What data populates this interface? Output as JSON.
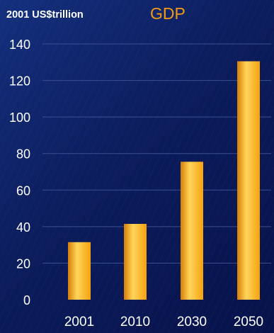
{
  "chart_data": {
    "type": "bar",
    "title": "GDP",
    "ylabel": "2001 US$trillion",
    "xlabel": "",
    "categories": [
      "2001",
      "2010",
      "2030",
      "2050"
    ],
    "values": [
      31.5,
      41.5,
      75.5,
      130.5
    ],
    "ylim": [
      0,
      140
    ],
    "yticks": [
      0,
      20,
      40,
      60,
      80,
      100,
      120,
      140
    ],
    "grid": true,
    "legend": "none",
    "colors": {
      "bar": "#f5a20f",
      "bar_light": "#ffd45a",
      "bar_dark": "#d77d08",
      "title": "#f39a16",
      "text": "#ffffff",
      "grid": "#3b4f92"
    }
  }
}
